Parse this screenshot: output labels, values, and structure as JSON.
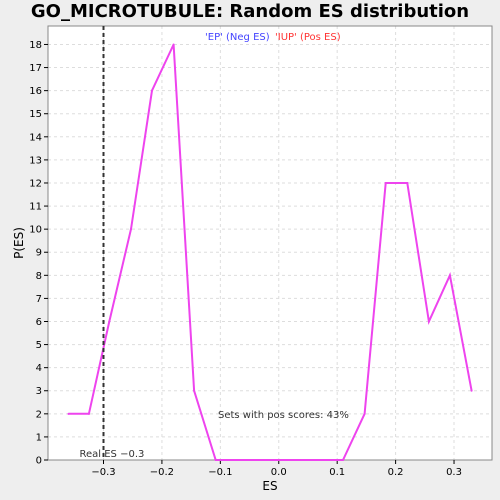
{
  "chart_data": {
    "type": "line",
    "title": "GO_MICROTUBULE: Random ES distribution",
    "xlabel": "ES",
    "ylabel": "P(ES)",
    "xlim": [
      -0.395,
      0.365
    ],
    "ylim": [
      0,
      18.8
    ],
    "x_ticks": [
      -0.3,
      -0.2,
      -0.1,
      0.0,
      0.1,
      0.2,
      0.3
    ],
    "x_tick_labels": [
      "−0.3",
      "−0.2",
      "−0.1",
      "0.0",
      "0.1",
      "0.2",
      "0.3"
    ],
    "y_ticks": [
      0,
      1,
      2,
      3,
      4,
      5,
      6,
      7,
      8,
      9,
      10,
      11,
      12,
      13,
      14,
      15,
      16,
      17,
      18
    ],
    "grid": true,
    "legend": [
      {
        "label": "'EP' (Neg ES)",
        "color": "#4444ff"
      },
      {
        "label": "'IUP' (Pos ES)",
        "color": "#ff3333"
      }
    ],
    "series": [
      {
        "color": "#ee44ee",
        "x": [
          -0.36,
          -0.325,
          -0.29,
          -0.253,
          -0.217,
          -0.18,
          -0.145,
          -0.108,
          -0.072,
          -0.036,
          0.0,
          0.036,
          0.072,
          0.11,
          0.147,
          0.183,
          0.22,
          0.257,
          0.293,
          0.33
        ],
        "y": [
          2,
          2,
          6,
          10,
          16,
          18,
          3,
          0,
          0,
          0,
          0,
          0,
          0,
          0,
          2,
          12,
          12,
          6,
          8,
          3
        ]
      }
    ],
    "real_es": {
      "x": -0.3,
      "label": "Real ES −0.3"
    },
    "annotation": "Sets with pos scores: 43%"
  }
}
